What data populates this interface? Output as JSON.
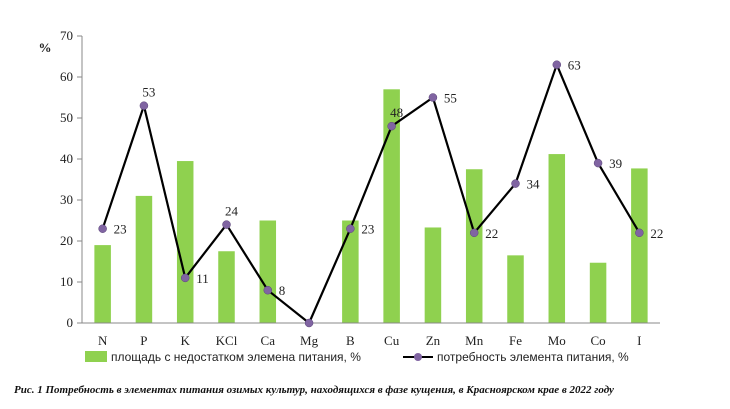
{
  "caption": "Рис. 1 Потребность в элементах питания озимых культур, находящихся в фазе кущения, в Красноярском крае в 2022 году",
  "chart_data": {
    "type": "bar",
    "categories": [
      "N",
      "P",
      "K",
      "KCl",
      "Ca",
      "Mg",
      "B",
      "Cu",
      "Zn",
      "Mn",
      "Fe",
      "Mo",
      "Co",
      "I"
    ],
    "ylabel": "%",
    "ylim": [
      0,
      70
    ],
    "yticks": [
      0,
      10,
      20,
      30,
      40,
      50,
      60,
      70
    ],
    "grid": false,
    "legend_position": "bottom",
    "series": [
      {
        "name": "площадь с недостатком элемена питания, %",
        "type": "bar",
        "color": "#8fd14f",
        "values": [
          19,
          31,
          39.5,
          17.5,
          25,
          0,
          25,
          57,
          23.3,
          37.5,
          16.5,
          41.2,
          14.7,
          37.7
        ]
      },
      {
        "name": "потребность элемента питания, %",
        "type": "line",
        "color": "#000000",
        "marker_color": "#8064a2",
        "values": [
          23,
          53,
          11,
          24,
          8,
          0,
          23,
          48,
          55,
          22,
          34,
          63,
          39,
          22
        ],
        "data_labels": [
          "23",
          "53",
          "11",
          "24",
          "8",
          "",
          "23",
          "48",
          "55",
          "22",
          "34",
          "63",
          "39",
          "22"
        ]
      }
    ]
  }
}
